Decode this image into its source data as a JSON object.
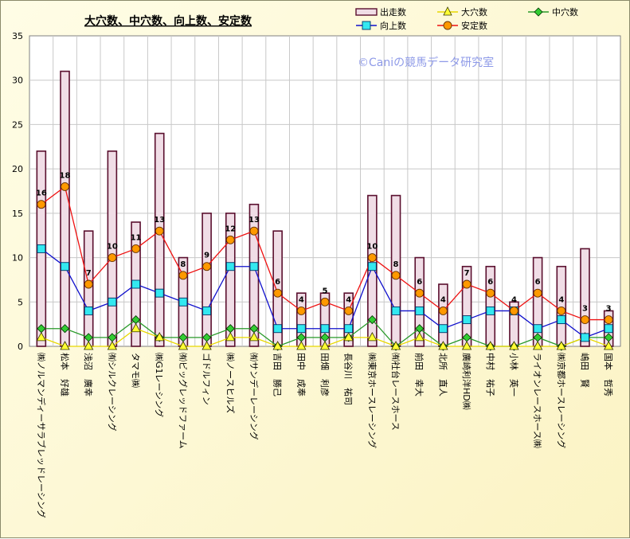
{
  "chart_data": {
    "type": "bar",
    "title": "大穴数、中穴数、向上数、安定数",
    "watermark": "©Caniの競馬データ研究室",
    "ylim": [
      0,
      35
    ],
    "yticks": [
      0,
      5,
      10,
      15,
      20,
      25,
      30,
      35
    ],
    "grid": true,
    "legend_position": "top-right",
    "categories": [
      "㈱ノルマンディーサラブレッドレーシング",
      "松本　好雄",
      "浅沼　廣幸",
      "㈲シルクレーシング",
      "タマモ㈱",
      "㈱G1レーシング",
      "㈲ビッグレッドファーム",
      "ゴドルフィン",
      "㈱ノースヒルズ",
      "㈲サンデーレーシング",
      "吉田　勝己",
      "田中　成奉",
      "田畑　利彦",
      "長谷川　祐司",
      "㈱東京ホースレーシング",
      "㈲社台レースホース",
      "前田　幸大",
      "北所　直人",
      "廣崎利洋HD㈱",
      "中村　祐子",
      "小林　英一",
      "ライオンレースホース㈱",
      "㈱京都ホースレーシング",
      "嶋田　賢",
      "国本　哲秀"
    ],
    "series": [
      {
        "name": "出走数",
        "kind": "bar",
        "color": "#f0dde6",
        "values": [
          22,
          31,
          13,
          22,
          14,
          24,
          10,
          15,
          15,
          16,
          13,
          6,
          6,
          6,
          17,
          17,
          10,
          7,
          9,
          9,
          5,
          10,
          9,
          11,
          4
        ]
      },
      {
        "name": "大穴数",
        "kind": "line",
        "color": "#e8d800",
        "values": [
          1,
          0,
          0,
          0,
          2,
          1,
          0,
          0,
          1,
          1,
          0,
          0,
          0,
          1,
          1,
          0,
          1,
          0,
          0,
          0,
          0,
          0,
          0,
          1,
          0
        ]
      },
      {
        "name": "中穴数",
        "kind": "line",
        "color": "#2a9a2a",
        "values": [
          2,
          2,
          1,
          1,
          3,
          1,
          1,
          1,
          2,
          2,
          0,
          1,
          1,
          1,
          3,
          0,
          2,
          0,
          1,
          0,
          0,
          1,
          0,
          1,
          1
        ]
      },
      {
        "name": "向上数",
        "kind": "line",
        "color": "#1010cc",
        "values": [
          11,
          9,
          4,
          5,
          7,
          6,
          5,
          4,
          9,
          9,
          2,
          2,
          2,
          2,
          9,
          4,
          4,
          2,
          3,
          4,
          4,
          2,
          3,
          1,
          2
        ]
      },
      {
        "name": "安定数",
        "kind": "line",
        "color": "#ee1111",
        "values": [
          16,
          18,
          7,
          10,
          11,
          13,
          8,
          9,
          12,
          13,
          6,
          4,
          5,
          4,
          10,
          8,
          6,
          4,
          7,
          6,
          4,
          6,
          4,
          3,
          3
        ]
      }
    ],
    "data_labels": {
      "series": "安定数",
      "values": [
        "16",
        "18",
        "7",
        "10",
        "11",
        "13",
        "8",
        "9",
        "12",
        "13",
        "6",
        "4",
        "5",
        "4",
        "10",
        "8",
        "6",
        "4",
        "7",
        "6",
        "4",
        "6",
        "4",
        "3",
        "3"
      ]
    }
  }
}
